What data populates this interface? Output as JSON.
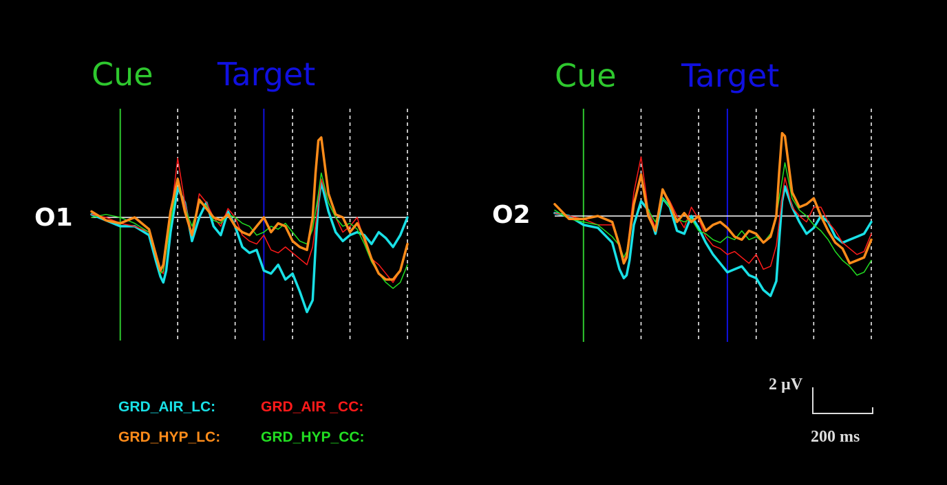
{
  "colors": {
    "background": "#000000",
    "cue": "#2ec82e",
    "target": "#1010e0",
    "baseline": "#ffffff",
    "gridline": "#ffffff",
    "scale": "#dddddd"
  },
  "legend": [
    {
      "label": "GRD_AIR_LC:",
      "color": "#19e0e6"
    },
    {
      "label": "GRD_AIR _CC:",
      "color": "#ff1a1a"
    },
    {
      "label": "GRD_HYP_LC:",
      "color": "#ff8c1a"
    },
    {
      "label": "GRD_HYP_CC:",
      "color": "#22dd22"
    }
  ],
  "scale_bar": {
    "amplitude_label": "2 µV",
    "time_label": "200 ms"
  },
  "chart_data": [
    {
      "type": "line",
      "channel": "O1",
      "cue_label": "Cue",
      "target_label": "Target",
      "x_unit": "ms",
      "y_unit": "µV",
      "x_range": [
        -100,
        1000
      ],
      "grid": "dashed verticals every 200 ms",
      "cue_time_ms": 0,
      "target_time_ms": 500,
      "series": [
        {
          "color": "#19e0e6",
          "width": 3.5,
          "x": [
            -100,
            -50,
            0,
            50,
            100,
            125,
            140,
            150,
            160,
            175,
            200,
            225,
            250,
            275,
            300,
            325,
            350,
            375,
            400,
            425,
            450,
            475,
            500,
            525,
            550,
            575,
            600,
            625,
            650,
            670,
            680,
            690,
            700,
            725,
            750,
            775,
            800,
            825,
            850,
            875,
            900,
            925,
            950,
            975,
            1000
          ],
          "y": [
            0.1,
            -0.1,
            -0.3,
            -0.3,
            -0.6,
            -1.5,
            -2.0,
            -2.2,
            -1.8,
            -0.5,
            1.0,
            0.5,
            -0.8,
            0.0,
            0.5,
            -0.3,
            -0.6,
            0.2,
            -0.3,
            -1.0,
            -1.2,
            -1.1,
            -1.8,
            -1.9,
            -1.6,
            -2.1,
            -1.9,
            -2.5,
            -3.2,
            -2.8,
            -1.0,
            0.5,
            1.2,
            0.2,
            -0.5,
            -0.8,
            -0.6,
            -0.5,
            -0.6,
            -0.9,
            -0.5,
            -0.7,
            -1.0,
            -0.6,
            0.0
          ]
        },
        {
          "color": "#ff1a1a",
          "width": 1.5,
          "x": [
            -100,
            -50,
            0,
            50,
            100,
            125,
            140,
            150,
            175,
            200,
            225,
            250,
            275,
            300,
            325,
            350,
            375,
            400,
            425,
            450,
            475,
            500,
            525,
            550,
            575,
            600,
            625,
            650,
            670,
            690,
            700,
            725,
            750,
            775,
            800,
            825,
            850,
            875,
            900,
            925,
            950,
            975,
            1000
          ],
          "y": [
            0.1,
            0.0,
            -0.2,
            -0.3,
            -0.5,
            -1.2,
            -1.8,
            -1.9,
            0.0,
            2.0,
            0.5,
            -0.6,
            0.8,
            0.5,
            0.0,
            -0.3,
            0.3,
            0.0,
            -0.6,
            -0.8,
            -0.9,
            -0.6,
            -1.1,
            -1.2,
            -1.0,
            -1.2,
            -1.4,
            -1.6,
            -1.0,
            0.5,
            1.3,
            0.5,
            0.0,
            -0.5,
            -0.3,
            0.0,
            -0.8,
            -1.4,
            -1.6,
            -1.9,
            -2.2,
            -1.8,
            -0.9
          ]
        },
        {
          "color": "#22dd22",
          "width": 1.5,
          "x": [
            -100,
            -50,
            0,
            50,
            100,
            125,
            140,
            150,
            175,
            200,
            225,
            250,
            275,
            300,
            325,
            350,
            375,
            400,
            425,
            450,
            475,
            500,
            525,
            550,
            575,
            600,
            625,
            650,
            670,
            690,
            700,
            725,
            750,
            775,
            800,
            825,
            850,
            875,
            900,
            925,
            950,
            975,
            1000
          ],
          "y": [
            0.0,
            0.1,
            0.0,
            -0.2,
            -0.5,
            -1.3,
            -1.9,
            -1.8,
            -0.2,
            1.3,
            0.3,
            -0.3,
            0.5,
            0.4,
            -0.1,
            -0.2,
            0.1,
            0.0,
            -0.2,
            -0.3,
            -0.6,
            -0.5,
            -0.3,
            -0.4,
            -0.2,
            -0.5,
            -0.8,
            -0.9,
            -0.4,
            0.8,
            1.5,
            0.5,
            0.0,
            -0.3,
            -0.2,
            -0.4,
            -0.9,
            -1.5,
            -1.9,
            -2.2,
            -2.4,
            -2.2,
            -1.6
          ]
        },
        {
          "color": "#ff8c1a",
          "width": 3.5,
          "x": [
            -100,
            -50,
            0,
            50,
            100,
            125,
            140,
            150,
            175,
            200,
            225,
            250,
            275,
            300,
            325,
            350,
            375,
            400,
            425,
            450,
            475,
            500,
            525,
            550,
            575,
            600,
            625,
            650,
            670,
            680,
            690,
            700,
            725,
            750,
            775,
            800,
            825,
            850,
            875,
            900,
            925,
            950,
            975,
            1000
          ],
          "y": [
            0.2,
            -0.1,
            -0.2,
            0.0,
            -0.4,
            -1.3,
            -1.8,
            -1.6,
            0.2,
            1.3,
            0.2,
            -0.6,
            0.6,
            0.3,
            0.0,
            -0.1,
            0.1,
            -0.3,
            -0.5,
            -0.6,
            -0.3,
            0.0,
            -0.5,
            -0.2,
            -0.3,
            -0.8,
            -1.0,
            -1.1,
            0.0,
            1.5,
            2.6,
            2.7,
            0.8,
            0.1,
            0.0,
            -0.5,
            -0.2,
            -0.7,
            -1.4,
            -1.9,
            -2.1,
            -2.1,
            -1.8,
            -0.9
          ]
        }
      ]
    },
    {
      "type": "line",
      "channel": "O2",
      "cue_label": "Cue",
      "target_label": "Target",
      "x_unit": "ms",
      "y_unit": "µV",
      "x_range": [
        -100,
        1000
      ],
      "grid": "dashed verticals every 200 ms",
      "cue_time_ms": 0,
      "target_time_ms": 500,
      "series": [
        {
          "color": "#19e0e6",
          "width": 3.5,
          "x": [
            -100,
            -50,
            0,
            50,
            100,
            125,
            140,
            150,
            160,
            175,
            200,
            225,
            250,
            275,
            300,
            325,
            350,
            375,
            400,
            425,
            450,
            475,
            500,
            525,
            550,
            575,
            600,
            625,
            650,
            670,
            680,
            690,
            700,
            725,
            750,
            775,
            800,
            825,
            850,
            875,
            900,
            925,
            950,
            975,
            1000
          ],
          "y": [
            0.1,
            0.0,
            -0.3,
            -0.4,
            -0.9,
            -1.8,
            -2.1,
            -2.0,
            -1.5,
            -0.3,
            0.5,
            0.2,
            -0.6,
            0.6,
            0.3,
            -0.5,
            -0.6,
            0.0,
            -0.4,
            -0.9,
            -1.3,
            -1.6,
            -1.9,
            -1.8,
            -1.7,
            -2.0,
            -2.1,
            -2.5,
            -2.7,
            -2.2,
            -0.8,
            0.5,
            1.0,
            0.3,
            -0.2,
            -0.6,
            -0.4,
            0.0,
            -0.2,
            -0.7,
            -0.9,
            -0.8,
            -0.7,
            -0.6,
            -0.2
          ]
        },
        {
          "color": "#ff1a1a",
          "width": 1.5,
          "x": [
            -100,
            -50,
            0,
            50,
            100,
            125,
            140,
            150,
            175,
            200,
            225,
            250,
            275,
            300,
            325,
            350,
            375,
            400,
            425,
            450,
            475,
            500,
            525,
            550,
            575,
            600,
            625,
            650,
            670,
            690,
            700,
            725,
            750,
            775,
            800,
            825,
            850,
            875,
            900,
            925,
            950,
            975,
            1000
          ],
          "y": [
            0.1,
            0.0,
            -0.1,
            -0.3,
            -0.3,
            -1.0,
            -1.5,
            -1.3,
            0.8,
            2.0,
            0.2,
            -0.4,
            0.9,
            0.5,
            0.0,
            -0.4,
            0.3,
            -0.1,
            -0.7,
            -1.0,
            -1.1,
            -1.3,
            -1.2,
            -1.4,
            -1.6,
            -1.3,
            -1.8,
            -1.7,
            -1.0,
            0.6,
            1.3,
            0.3,
            0.0,
            -0.2,
            0.3,
            0.3,
            -0.2,
            -0.5,
            -0.9,
            -1.1,
            -1.3,
            -1.2,
            -0.6
          ]
        },
        {
          "color": "#22dd22",
          "width": 1.5,
          "x": [
            -100,
            -50,
            0,
            50,
            100,
            125,
            140,
            150,
            175,
            200,
            225,
            250,
            275,
            300,
            325,
            350,
            375,
            400,
            425,
            450,
            475,
            500,
            525,
            550,
            575,
            600,
            625,
            650,
            670,
            690,
            700,
            725,
            750,
            775,
            800,
            825,
            850,
            875,
            900,
            925,
            950,
            975,
            1000
          ],
          "y": [
            0.2,
            -0.1,
            -0.2,
            -0.3,
            -0.7,
            -1.0,
            -1.4,
            -1.2,
            0.3,
            1.4,
            0.2,
            -0.2,
            0.6,
            0.3,
            -0.1,
            -0.2,
            -0.1,
            -0.5,
            -0.6,
            -0.8,
            -0.9,
            -0.7,
            -0.8,
            -0.5,
            -0.8,
            -0.7,
            -0.9,
            -0.6,
            0.0,
            1.2,
            1.8,
            0.6,
            0.2,
            0.0,
            -0.3,
            -0.5,
            -0.8,
            -1.2,
            -1.5,
            -1.7,
            -2.0,
            -1.9,
            -1.5
          ]
        },
        {
          "color": "#ff8c1a",
          "width": 3.5,
          "x": [
            -100,
            -50,
            0,
            50,
            100,
            125,
            140,
            150,
            175,
            200,
            225,
            250,
            275,
            300,
            325,
            350,
            375,
            400,
            425,
            450,
            475,
            500,
            525,
            550,
            575,
            600,
            625,
            650,
            670,
            680,
            690,
            700,
            725,
            750,
            775,
            800,
            825,
            850,
            875,
            900,
            925,
            950,
            975,
            1000
          ],
          "y": [
            0.4,
            -0.1,
            -0.1,
            0.0,
            -0.2,
            -1.0,
            -1.6,
            -1.4,
            0.4,
            1.4,
            0.0,
            -0.5,
            0.9,
            0.4,
            -0.2,
            0.1,
            -0.2,
            0.0,
            -0.5,
            -0.3,
            -0.2,
            -0.4,
            -0.7,
            -0.8,
            -0.5,
            -0.6,
            -0.9,
            -0.7,
            0.0,
            1.5,
            2.8,
            2.7,
            0.8,
            0.3,
            0.4,
            0.6,
            0.0,
            -0.5,
            -0.9,
            -1.1,
            -1.6,
            -1.5,
            -1.4,
            -0.8
          ]
        }
      ]
    }
  ]
}
